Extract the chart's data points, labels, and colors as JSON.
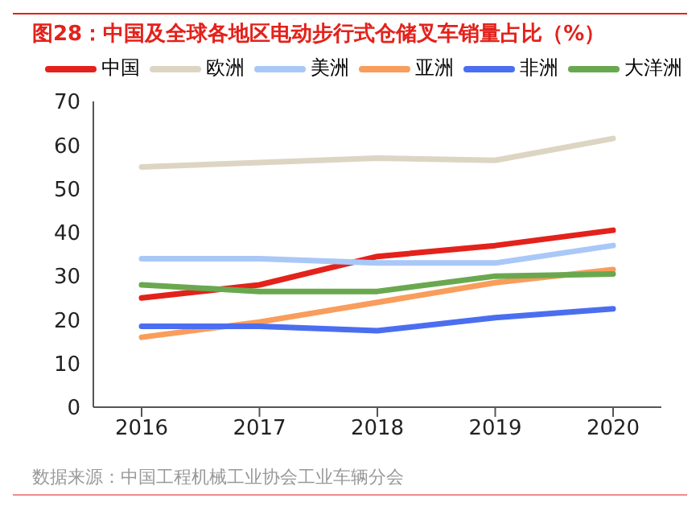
{
  "chart_data": {
    "type": "line",
    "title": "图28：中国及全球各地区电动步行式仓储叉车销量占比（%）",
    "categories": [
      "2016",
      "2017",
      "2018",
      "2019",
      "2020"
    ],
    "series": [
      {
        "name": "中国",
        "color": "#e3221b",
        "values": [
          25,
          28,
          34.5,
          37,
          40.5
        ]
      },
      {
        "name": "欧洲",
        "color": "#ddd5c3",
        "values": [
          55,
          56,
          57,
          56.5,
          61.5
        ]
      },
      {
        "name": "美洲",
        "color": "#a9c8f7",
        "values": [
          34,
          34,
          33,
          33,
          37
        ]
      },
      {
        "name": "亚洲",
        "color": "#f99d5c",
        "values": [
          16,
          19.5,
          24,
          28.5,
          31.5
        ]
      },
      {
        "name": "非洲",
        "color": "#4b6ef0",
        "values": [
          18.5,
          18.5,
          17.5,
          20.5,
          22.5
        ]
      },
      {
        "name": "大洋洲",
        "color": "#6aa84f",
        "values": [
          28,
          26.5,
          26.5,
          30,
          30.5
        ]
      }
    ],
    "ylim": [
      0,
      70
    ],
    "yticks": [
      0,
      10,
      20,
      30,
      40,
      50,
      60,
      70
    ],
    "grid": false,
    "legend": "top",
    "marker": "none",
    "line_style": "solid",
    "annotations": [
      "数据来源：中国工程机械工业协会工业车辆分会"
    ]
  }
}
